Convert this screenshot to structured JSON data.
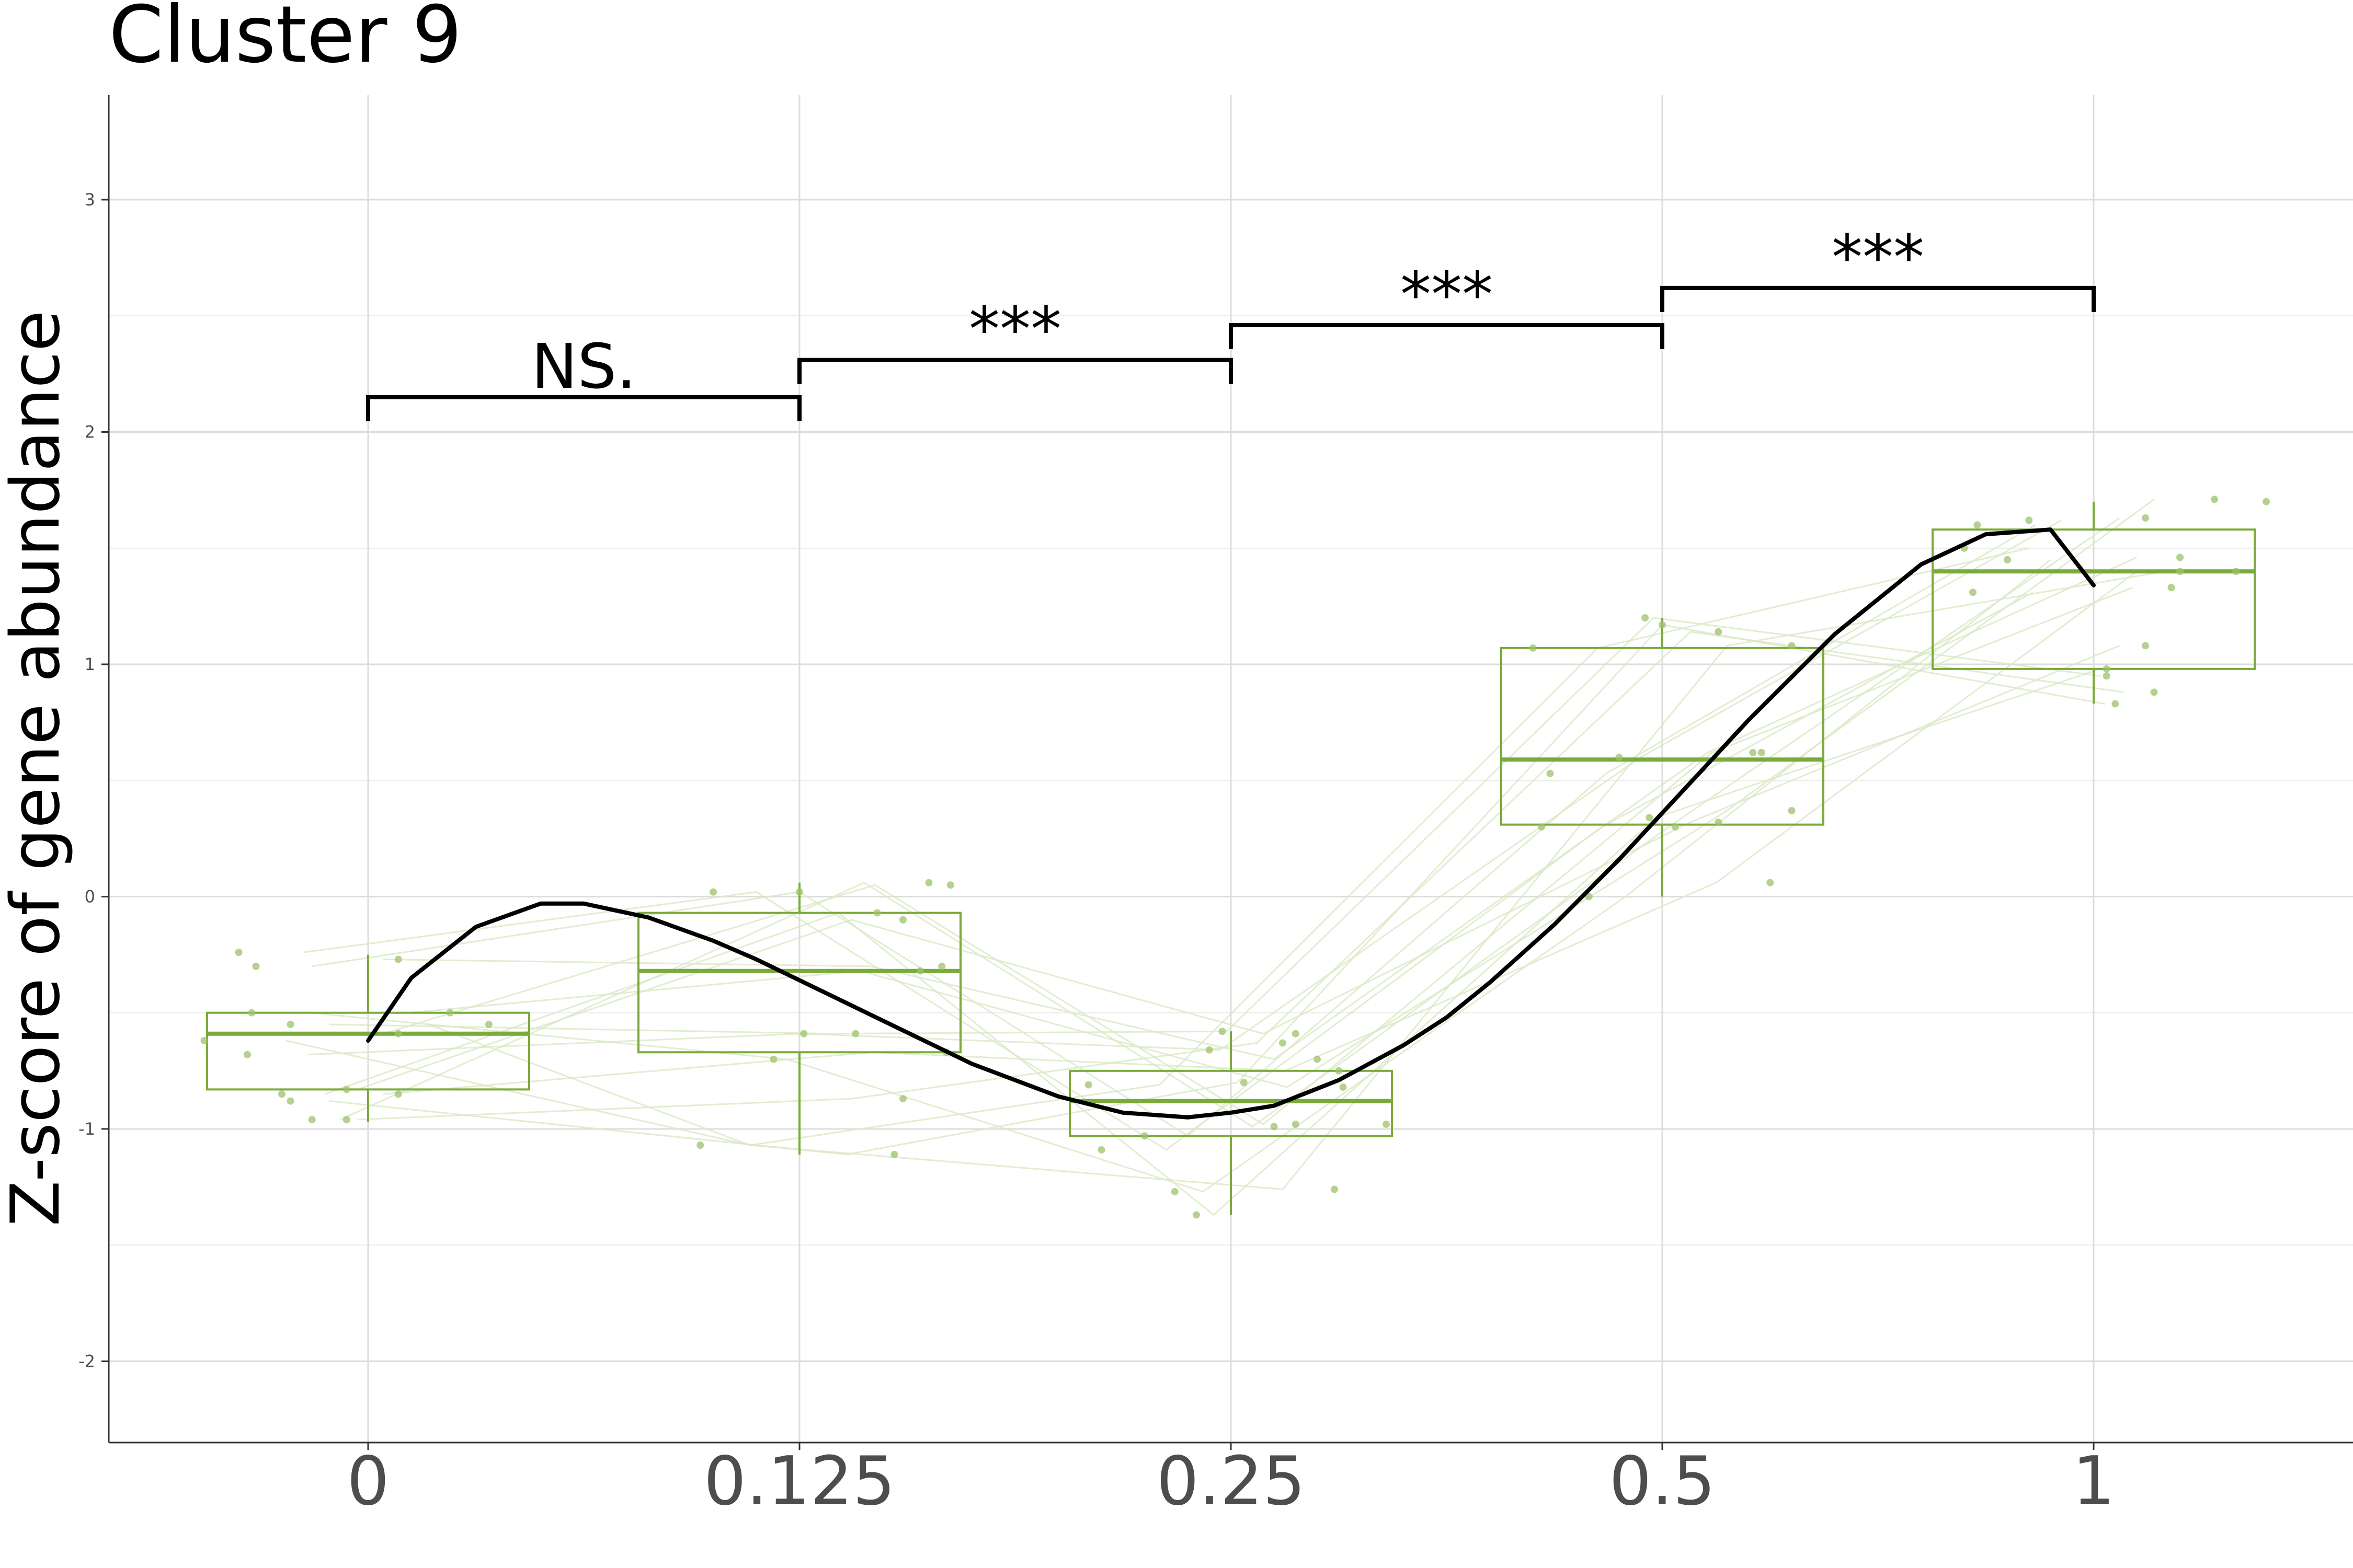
{
  "chart_data": {
    "type": "box",
    "title": "Cluster 9",
    "xlabel": "",
    "ylabel": "Z-score of gene abundance",
    "categories": [
      "0",
      "0.125",
      "0.25",
      "0.5",
      "1"
    ],
    "ylim": [
      -2.35,
      3.45
    ],
    "y_ticks": [
      -2,
      -1,
      0,
      1,
      2,
      3
    ],
    "y_tick_labels": [
      "-2",
      "-1",
      "0",
      "1",
      "2",
      "3"
    ],
    "grid": true,
    "colors": {
      "box": "#7aab3a",
      "points": "#9cc26b",
      "lines": "#d9e8c4",
      "trend": "#000000",
      "grid": "#dcdcdc"
    },
    "boxes": [
      {
        "category": "0",
        "whisker_low": -0.97,
        "q1": -0.83,
        "median": -0.59,
        "q3": -0.5,
        "whisker_high": -0.25
      },
      {
        "category": "0.125",
        "whisker_low": -1.11,
        "q1": -0.67,
        "median": -0.32,
        "q3": -0.07,
        "whisker_high": 0.06
      },
      {
        "category": "0.25",
        "whisker_low": -1.37,
        "q1": -1.03,
        "median": -0.88,
        "q3": -0.75,
        "whisker_high": -0.58
      },
      {
        "category": "0.5",
        "whisker_low": 0.0,
        "q1": 0.31,
        "median": 0.59,
        "q3": 1.07,
        "whisker_high": 1.2
      },
      {
        "category": "1",
        "whisker_low": 0.83,
        "q1": 0.98,
        "median": 1.4,
        "q3": 1.58,
        "whisker_high": 1.7
      }
    ],
    "points": [
      [
        [
          -0.38,
          -0.62
        ],
        [
          -0.3,
          -0.24
        ],
        [
          -0.26,
          -0.3
        ],
        [
          -0.27,
          -0.5
        ],
        [
          -0.28,
          -0.68
        ],
        [
          -0.18,
          -0.55
        ],
        [
          -0.2,
          -0.85
        ],
        [
          -0.18,
          -0.88
        ],
        [
          -0.13,
          -0.96
        ],
        [
          -0.05,
          -0.83
        ],
        [
          -0.05,
          -0.96
        ],
        [
          0.07,
          -0.27
        ],
        [
          0.07,
          -0.59
        ],
        [
          0.07,
          -0.85
        ],
        [
          0.19,
          -0.5
        ],
        [
          0.28,
          -0.55
        ]
      ],
      [
        [
          -0.23,
          -1.07
        ],
        [
          -0.2,
          0.02
        ],
        [
          0,
          0.02
        ],
        [
          -0.06,
          -0.7
        ],
        [
          0.01,
          -0.59
        ],
        [
          0.13,
          -0.59
        ],
        [
          0.18,
          -0.07
        ],
        [
          0.22,
          -1.11
        ],
        [
          0.3,
          0.06
        ],
        [
          0.24,
          -0.1
        ],
        [
          0.24,
          -0.87
        ],
        [
          0.33,
          -0.3
        ],
        [
          0.35,
          0.05
        ],
        [
          0.34,
          -0.67
        ],
        [
          0.28,
          -0.32
        ]
      ],
      [
        [
          -0.33,
          -0.81
        ],
        [
          -0.3,
          -1.09
        ],
        [
          -0.2,
          -1.03
        ],
        [
          -0.13,
          -1.27
        ],
        [
          -0.05,
          -0.66
        ],
        [
          -0.02,
          -0.58
        ],
        [
          -0.08,
          -1.37
        ],
        [
          0.03,
          -0.8
        ],
        [
          0.1,
          -0.99
        ],
        [
          0.15,
          -0.59
        ],
        [
          0.12,
          -0.63
        ],
        [
          0.2,
          -0.7
        ],
        [
          0.15,
          -0.98
        ],
        [
          0.25,
          -0.75
        ],
        [
          0.26,
          -0.82
        ],
        [
          0.24,
          -1.26
        ],
        [
          0.36,
          -0.98
        ]
      ],
      [
        [
          -0.3,
          1.07
        ],
        [
          -0.28,
          0.3
        ],
        [
          -0.26,
          0.53
        ],
        [
          -0.17,
          0.0
        ],
        [
          -0.1,
          0.6
        ],
        [
          -0.04,
          1.2
        ],
        [
          -0.03,
          0.34
        ],
        [
          0.0,
          1.17
        ],
        [
          0.03,
          0.3
        ],
        [
          0.13,
          0.32
        ],
        [
          0.13,
          1.14
        ],
        [
          0.21,
          0.62
        ],
        [
          0.23,
          0.62
        ],
        [
          0.25,
          0.06
        ],
        [
          0.3,
          0.37
        ],
        [
          0.3,
          1.08
        ]
      ],
      [
        [
          -0.3,
          1.5
        ],
        [
          -0.28,
          1.31
        ],
        [
          -0.27,
          1.6
        ],
        [
          -0.2,
          1.45
        ],
        [
          -0.15,
          1.62
        ],
        [
          0.03,
          0.95
        ],
        [
          0.03,
          0.98
        ],
        [
          0.05,
          0.83
        ],
        [
          0.12,
          1.63
        ],
        [
          0.12,
          1.08
        ],
        [
          0.14,
          0.88
        ],
        [
          0.2,
          1.46
        ],
        [
          0.18,
          1.33
        ],
        [
          0.2,
          1.4
        ],
        [
          0.28,
          1.71
        ],
        [
          0.33,
          1.4
        ],
        [
          0.4,
          1.7
        ]
      ]
    ],
    "trend_line": {
      "x": [
        0,
        0.1,
        0.25,
        0.4,
        0.5,
        0.65,
        0.8,
        0.9,
        1,
        1.2,
        1.4,
        1.6,
        1.75,
        1.9,
        2.0,
        2.1,
        2.25,
        2.4,
        2.5,
        2.6,
        2.75,
        2.9,
        3.0,
        3.2,
        3.4,
        3.6,
        3.75,
        3.9,
        4.0
      ],
      "y": [
        -0.62,
        -0.35,
        -0.13,
        -0.03,
        -0.03,
        -0.09,
        -0.19,
        -0.27,
        -0.36,
        -0.54,
        -0.72,
        -0.86,
        -0.93,
        -0.95,
        -0.93,
        -0.9,
        -0.79,
        -0.64,
        -0.52,
        -0.37,
        -0.12,
        0.16,
        0.36,
        0.76,
        1.13,
        1.43,
        1.56,
        1.58,
        1.34
      ]
    },
    "comparisons": [
      {
        "from": 0,
        "to": 1,
        "y": 2.15,
        "label": "NS."
      },
      {
        "from": 1,
        "to": 2,
        "y": 2.31,
        "label": "***"
      },
      {
        "from": 2,
        "to": 3,
        "y": 2.46,
        "label": "***"
      },
      {
        "from": 3,
        "to": 4,
        "y": 2.62,
        "label": "***"
      }
    ]
  }
}
